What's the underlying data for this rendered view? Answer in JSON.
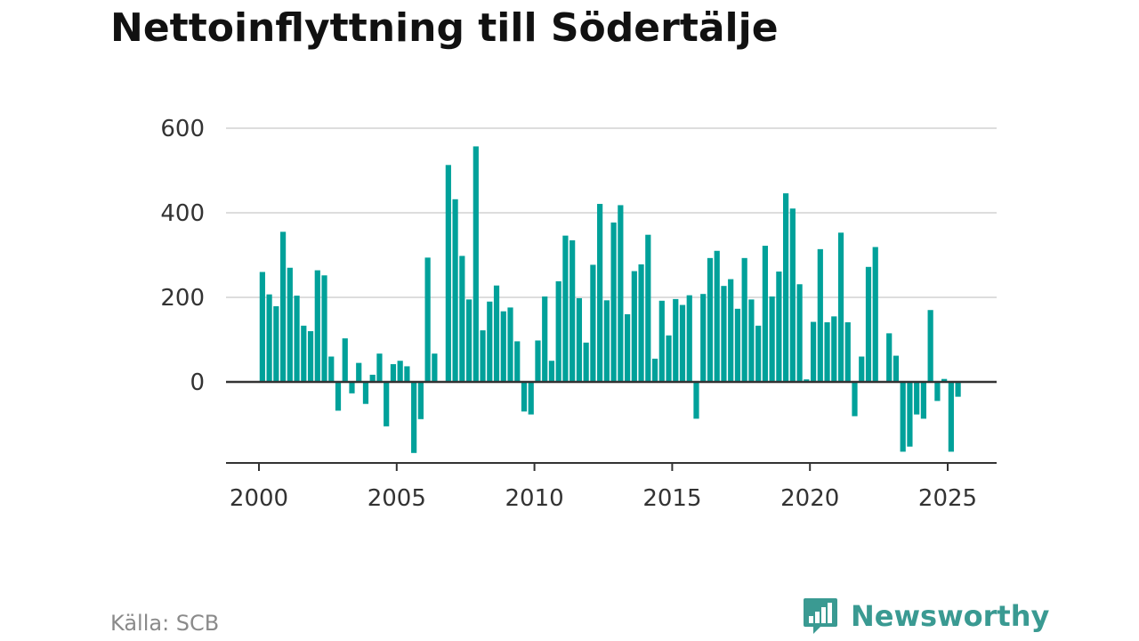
{
  "title": "Nettoinflyttning till Södertälje",
  "source": "Källa: SCB",
  "brand": {
    "name": "Newsworthy",
    "icon": "bar-chart-speech-bubble-icon",
    "color": "#3a9a92"
  },
  "chart_data": {
    "type": "bar",
    "title": "Nettoinflyttning till Södertälje",
    "xlabel": "",
    "ylabel": "",
    "color": "#00a19a",
    "ylim": [
      -190,
      640
    ],
    "xlim": [
      1997.7,
      2026.0
    ],
    "yticks": [
      0,
      200,
      400,
      600
    ],
    "ytick_labels": [
      "0",
      "200",
      "400",
      "600"
    ],
    "xticks": [
      2000,
      2005,
      2010,
      2015,
      2020,
      2025
    ],
    "xtick_labels": [
      "2000",
      "2005",
      "2010",
      "2015",
      "2020",
      "2025"
    ],
    "grid": true,
    "legend": "none",
    "x_period": "quarter",
    "x": [
      "2000 Q1",
      "2000 Q2",
      "2000 Q3",
      "2000 Q4",
      "2001 Q1",
      "2001 Q2",
      "2001 Q3",
      "2001 Q4",
      "2002 Q1",
      "2002 Q2",
      "2002 Q3",
      "2002 Q4",
      "2003 Q1",
      "2003 Q2",
      "2003 Q3",
      "2003 Q4",
      "2004 Q1",
      "2004 Q2",
      "2004 Q3",
      "2004 Q4",
      "2005 Q1",
      "2005 Q2",
      "2005 Q3",
      "2005 Q4",
      "2006 Q1",
      "2006 Q2",
      "2006 Q3",
      "2006 Q4",
      "2007 Q1",
      "2007 Q2",
      "2007 Q3",
      "2007 Q4",
      "2008 Q1",
      "2008 Q2",
      "2008 Q3",
      "2008 Q4",
      "2009 Q1",
      "2009 Q2",
      "2009 Q3",
      "2009 Q4",
      "2010 Q1",
      "2010 Q2",
      "2010 Q3",
      "2010 Q4",
      "2011 Q1",
      "2011 Q2",
      "2011 Q3",
      "2011 Q4",
      "2012 Q1",
      "2012 Q2",
      "2012 Q3",
      "2012 Q4",
      "2013 Q1",
      "2013 Q2",
      "2013 Q3",
      "2013 Q4",
      "2014 Q1",
      "2014 Q2",
      "2014 Q3",
      "2014 Q4",
      "2015 Q1",
      "2015 Q2",
      "2015 Q3",
      "2015 Q4",
      "2016 Q1",
      "2016 Q2",
      "2016 Q3",
      "2016 Q4",
      "2017 Q1",
      "2017 Q2",
      "2017 Q3",
      "2017 Q4",
      "2018 Q1",
      "2018 Q2",
      "2018 Q3",
      "2018 Q4",
      "2019 Q1",
      "2019 Q2",
      "2019 Q3",
      "2019 Q4",
      "2020 Q1",
      "2020 Q2",
      "2020 Q3",
      "2020 Q4",
      "2021 Q1",
      "2021 Q2",
      "2021 Q3",
      "2021 Q4",
      "2022 Q1",
      "2022 Q2",
      "2022 Q3",
      "2022 Q4",
      "2023 Q1",
      "2023 Q2",
      "2023 Q3",
      "2023 Q4",
      "2024 Q1",
      "2024 Q2",
      "2024 Q3",
      "2024 Q4",
      "2025 Q1",
      "2025 Q2"
    ],
    "values": [
      260,
      207,
      179,
      355,
      270,
      204,
      133,
      120,
      264,
      252,
      60,
      -68,
      103,
      -27,
      45,
      -52,
      17,
      67,
      -105,
      42,
      50,
      37,
      -168,
      -88,
      294,
      67,
      0,
      513,
      432,
      298,
      195,
      557,
      122,
      190,
      228,
      167,
      176,
      96,
      -70,
      -77,
      98,
      202,
      50,
      238,
      346,
      335,
      198,
      93,
      277,
      421,
      193,
      377,
      418,
      160,
      262,
      278,
      348,
      55,
      192,
      110,
      196,
      182,
      205,
      -87,
      208,
      293,
      310,
      227,
      243,
      173,
      293,
      195,
      133,
      322,
      202,
      261,
      446,
      410,
      231,
      6,
      142,
      314,
      141,
      155,
      353,
      141,
      -81,
      60,
      272,
      319,
      0,
      115,
      62,
      -165,
      -153,
      -77,
      -87,
      170,
      -45,
      7,
      -165,
      -35
    ]
  }
}
